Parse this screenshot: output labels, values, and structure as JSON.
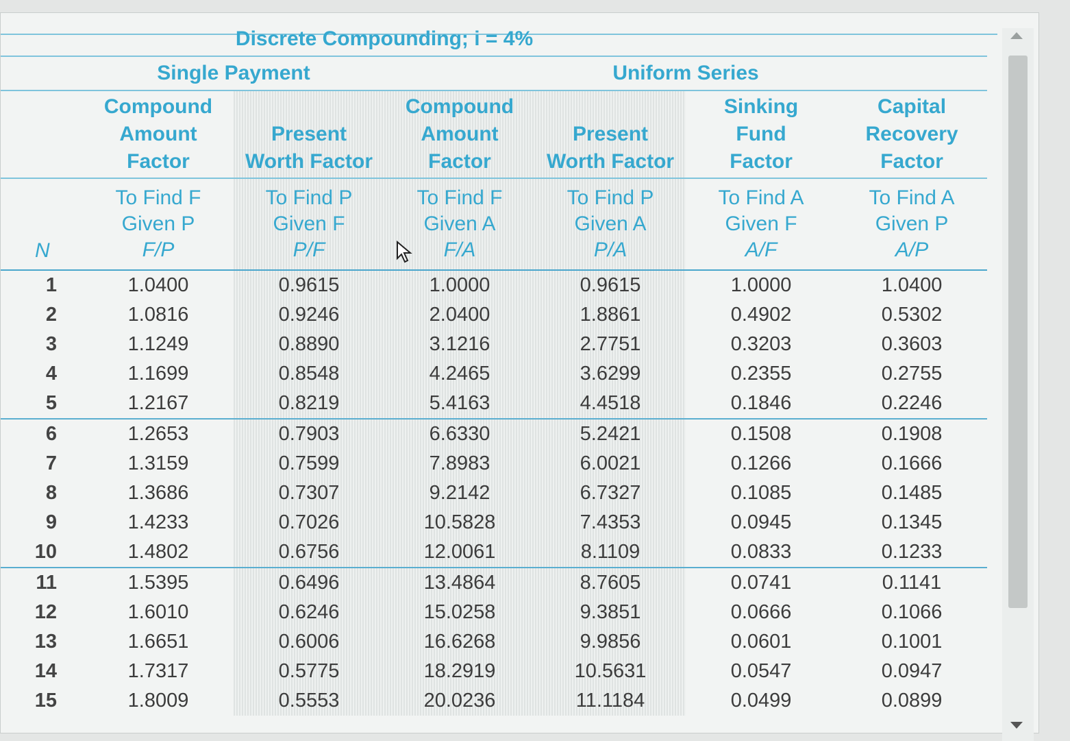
{
  "title": "Discrete Compounding; i = 4%",
  "groups": {
    "single": "Single Payment",
    "uniform": "Uniform Series"
  },
  "columns": [
    {
      "factor": [
        "Compound",
        "Amount",
        "Factor"
      ],
      "find": "To Find F",
      "given": "Given P",
      "abbr": "F/P"
    },
    {
      "factor": [
        "",
        "Present",
        "Worth Factor"
      ],
      "find": "To Find P",
      "given": "Given F",
      "abbr": "P/F"
    },
    {
      "factor": [
        "Compound",
        "Amount",
        "Factor"
      ],
      "find": "To Find F",
      "given": "Given A",
      "abbr": "F/A"
    },
    {
      "factor": [
        "",
        "Present",
        "Worth Factor"
      ],
      "find": "To Find P",
      "given": "Given A",
      "abbr": "P/A"
    },
    {
      "factor": [
        "Sinking",
        "Fund",
        "Factor"
      ],
      "find": "To Find A",
      "given": "Given F",
      "abbr": "A/F"
    },
    {
      "factor": [
        "Capital",
        "Recovery",
        "Factor"
      ],
      "find": "To Find A",
      "given": "Given P",
      "abbr": "A/P"
    }
  ],
  "n_label": "N",
  "rows": [
    {
      "n": "1",
      "v": [
        "1.0400",
        "0.9615",
        "1.0000",
        "0.9615",
        "1.0000",
        "1.0400"
      ]
    },
    {
      "n": "2",
      "v": [
        "1.0816",
        "0.9246",
        "2.0400",
        "1.8861",
        "0.4902",
        "0.5302"
      ]
    },
    {
      "n": "3",
      "v": [
        "1.1249",
        "0.8890",
        "3.1216",
        "2.7751",
        "0.3203",
        "0.3603"
      ]
    },
    {
      "n": "4",
      "v": [
        "1.1699",
        "0.8548",
        "4.2465",
        "3.6299",
        "0.2355",
        "0.2755"
      ]
    },
    {
      "n": "5",
      "v": [
        "1.2167",
        "0.8219",
        "5.4163",
        "4.4518",
        "0.1846",
        "0.2246"
      ]
    },
    {
      "n": "6",
      "v": [
        "1.2653",
        "0.7903",
        "6.6330",
        "5.2421",
        "0.1508",
        "0.1908"
      ]
    },
    {
      "n": "7",
      "v": [
        "1.3159",
        "0.7599",
        "7.8983",
        "6.0021",
        "0.1266",
        "0.1666"
      ]
    },
    {
      "n": "8",
      "v": [
        "1.3686",
        "0.7307",
        "9.2142",
        "6.7327",
        "0.1085",
        "0.1485"
      ]
    },
    {
      "n": "9",
      "v": [
        "1.4233",
        "0.7026",
        "10.5828",
        "7.4353",
        "0.0945",
        "0.1345"
      ]
    },
    {
      "n": "10",
      "v": [
        "1.4802",
        "0.6756",
        "12.0061",
        "8.1109",
        "0.0833",
        "0.1233"
      ]
    },
    {
      "n": "11",
      "v": [
        "1.5395",
        "0.6496",
        "13.4864",
        "8.7605",
        "0.0741",
        "0.1141"
      ]
    },
    {
      "n": "12",
      "v": [
        "1.6010",
        "0.6246",
        "15.0258",
        "9.3851",
        "0.0666",
        "0.1066"
      ]
    },
    {
      "n": "13",
      "v": [
        "1.6651",
        "0.6006",
        "16.6268",
        "9.9856",
        "0.0601",
        "0.1001"
      ]
    },
    {
      "n": "14",
      "v": [
        "1.7317",
        "0.5775",
        "18.2919",
        "10.5631",
        "0.0547",
        "0.0947"
      ]
    },
    {
      "n": "15",
      "v": [
        "1.8009",
        "0.5553",
        "20.0236",
        "11.1184",
        "0.0499",
        "0.0899"
      ]
    }
  ],
  "colors": {
    "accent": "#36a8cf",
    "rule": "#7fc4dc"
  }
}
